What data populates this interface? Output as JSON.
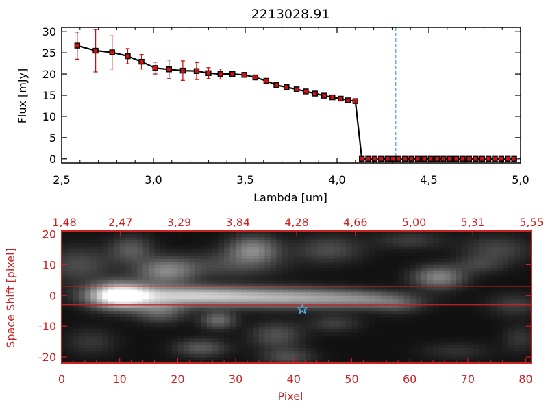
{
  "chart_data": [
    {
      "type": "line",
      "title": "2213028.91",
      "xlabel": "Lambda [um]",
      "ylabel": "Flux [mJy]",
      "xlim": [
        2.5,
        5.0
      ],
      "ylim": [
        -1,
        31
      ],
      "x_ticks": [
        "2.5",
        "3.0",
        "3.5",
        "4.0",
        "4.5",
        "5.0"
      ],
      "y_ticks": [
        "0",
        "5",
        "10",
        "15",
        "20",
        "25",
        "30"
      ],
      "marker_vline_x": 4.32,
      "colors": {
        "line": "#000000",
        "marker_fill": "#cc1111",
        "errorbar": "#cc1111",
        "vline": "#4a9fd8"
      },
      "series": [
        {
          "x": [
            2.585,
            2.685,
            2.775,
            2.86,
            2.935,
            3.01,
            3.085,
            3.16,
            3.235,
            3.3,
            3.365,
            3.43,
            3.495,
            3.555,
            3.615,
            3.67,
            3.725,
            3.78,
            3.83,
            3.88,
            3.93,
            3.975,
            4.02,
            4.06,
            4.1,
            4.135,
            4.17,
            4.205,
            4.24,
            4.275,
            4.305,
            4.335,
            4.37,
            4.405,
            4.44,
            4.475,
            4.51,
            4.545,
            4.58,
            4.615,
            4.65,
            4.685,
            4.72,
            4.755,
            4.79,
            4.825,
            4.86,
            4.895,
            4.93,
            4.965
          ],
          "values": [
            26.7,
            25.5,
            25.1,
            24.2,
            22.9,
            21.4,
            21.1,
            20.8,
            20.7,
            20.2,
            20.0,
            20.0,
            19.8,
            19.2,
            18.4,
            17.4,
            16.9,
            16.4,
            15.9,
            15.4,
            14.9,
            14.5,
            14.2,
            13.8,
            13.6,
            0,
            0,
            0,
            0,
            0,
            0,
            0,
            0,
            0,
            0,
            0,
            0,
            0,
            0,
            0,
            0,
            0,
            0,
            0,
            0,
            0,
            0,
            0,
            0,
            0
          ],
          "errors": [
            3.2,
            5.0,
            3.9,
            1.8,
            1.7,
            1.4,
            2.2,
            2.3,
            2.0,
            1.3,
            1.2,
            0.5,
            0.4,
            0.4,
            0.4,
            0.4,
            0.3,
            0.3,
            0.3,
            0.3,
            0.3,
            0.3,
            0.3,
            0.3,
            0.3,
            0,
            0,
            0,
            0,
            0,
            0,
            0,
            0,
            0,
            0,
            0,
            0,
            0,
            0,
            0,
            0,
            0,
            0,
            0,
            0,
            0,
            0,
            0,
            0,
            0
          ]
        }
      ]
    },
    {
      "type": "heatmap",
      "xlabel": "Pixel",
      "ylabel": "Space Shift [pixel]",
      "xlim": [
        0,
        81
      ],
      "ylim": [
        -22,
        21
      ],
      "x_ticks": [
        "0",
        "10",
        "20",
        "30",
        "40",
        "50",
        "60",
        "70",
        "80"
      ],
      "y_ticks": [
        "-20",
        "-10",
        "0",
        "10",
        "20"
      ],
      "top_ticks": [
        "1.48",
        "2.47",
        "3.29",
        "3.84",
        "4.28",
        "4.66",
        "5.00",
        "5.31",
        "5.55"
      ],
      "hlines": [
        3,
        -3
      ],
      "star": {
        "x": 41.5,
        "y": -4.5
      },
      "colors": {
        "axes": "#cc2222",
        "hline": "#cc2222",
        "star": "#5aa9e6"
      },
      "blobs": [
        {
          "x": 10,
          "y": 0,
          "sx": 3.5,
          "sy": 2.8,
          "a": 1.0
        },
        {
          "x": 20,
          "y": 0,
          "sx": 8,
          "sy": 2.2,
          "a": 0.55
        },
        {
          "x": 33,
          "y": -0.5,
          "sx": 9,
          "sy": 2.2,
          "a": 0.42
        },
        {
          "x": 45,
          "y": -1,
          "sx": 8,
          "sy": 2.2,
          "a": 0.33
        },
        {
          "x": 53,
          "y": -1.5,
          "sx": 5,
          "sy": 1.8,
          "a": 0.2
        },
        {
          "x": 18,
          "y": 8,
          "sx": 3.5,
          "sy": 3,
          "a": 0.42
        },
        {
          "x": 12,
          "y": 15,
          "sx": 2.5,
          "sy": 3,
          "a": 0.25
        },
        {
          "x": 33,
          "y": 15,
          "sx": 3,
          "sy": 3,
          "a": 0.42
        },
        {
          "x": 46,
          "y": 15,
          "sx": 4,
          "sy": 3,
          "a": 0.2
        },
        {
          "x": 29,
          "y": 10,
          "sx": 6,
          "sy": 3,
          "a": 0.18
        },
        {
          "x": 65,
          "y": 6,
          "sx": 3,
          "sy": 2.5,
          "a": 0.42
        },
        {
          "x": 75,
          "y": 15,
          "sx": 4,
          "sy": 3,
          "a": 0.18
        },
        {
          "x": 37,
          "y": -13,
          "sx": 3,
          "sy": 3,
          "a": 0.22
        },
        {
          "x": 27,
          "y": -8,
          "sx": 2,
          "sy": 2,
          "a": 0.32
        },
        {
          "x": 17,
          "y": -5,
          "sx": 3,
          "sy": 2.5,
          "a": 0.3
        },
        {
          "x": 24,
          "y": -17,
          "sx": 3,
          "sy": 2,
          "a": 0.25
        },
        {
          "x": 39,
          "y": -20,
          "sx": 3,
          "sy": 2,
          "a": 0.2
        },
        {
          "x": 47,
          "y": -9,
          "sx": 3,
          "sy": 2,
          "a": 0.15
        },
        {
          "x": 58,
          "y": -3,
          "sx": 3,
          "sy": 2,
          "a": 0.16
        },
        {
          "x": 78,
          "y": -3,
          "sx": 3,
          "sy": 2.5,
          "a": 0.15
        },
        {
          "x": 72,
          "y": 10,
          "sx": 3,
          "sy": 2,
          "a": 0.14
        },
        {
          "x": 79,
          "y": -14,
          "sx": 2,
          "sy": 3,
          "a": 0.12
        },
        {
          "x": 60,
          "y": 18,
          "sx": 4,
          "sy": 2,
          "a": 0.14
        },
        {
          "x": 3,
          "y": 10,
          "sx": 4,
          "sy": 4,
          "a": 0.2
        },
        {
          "x": 5,
          "y": -15,
          "sx": 3,
          "sy": 3,
          "a": 0.12
        },
        {
          "x": 68,
          "y": -18,
          "sx": 4,
          "sy": 2,
          "a": 0.1
        }
      ]
    }
  ]
}
